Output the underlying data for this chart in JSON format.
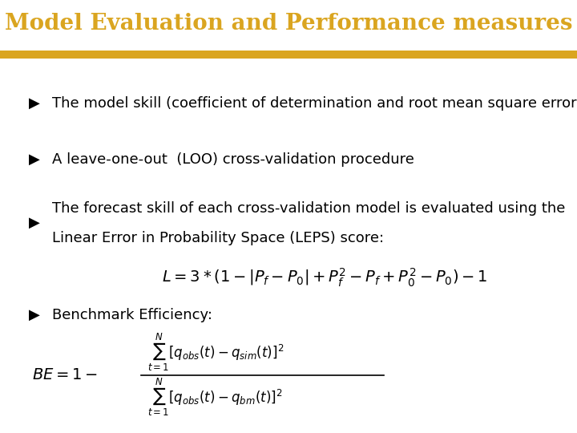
{
  "title": "Model Evaluation and Performance measures",
  "title_color": "#DAA520",
  "header_bg_color": "#00008B",
  "header_stripe_color": "#DAA520",
  "body_bg_color": "#FFFFFF",
  "bullet1": "The model skill (coefficient of determination and root mean square error)",
  "bullet2": "A leave-one-out  (LOO) cross-validation procedure",
  "bullet3_line1": "The forecast skill of each cross-validation model is evaluated using the",
  "bullet3_line2": "Linear Error in Probability Space (LEPS) score:",
  "bullet4": "Benchmark Efficiency:",
  "leps_formula": "$L = 3*(1-|P_f - P_0| + P_f^2 - P_f + P_0^2 - P_0) - 1$",
  "title_fontsize": 20,
  "body_fontsize": 13,
  "formula_fontsize": 13
}
